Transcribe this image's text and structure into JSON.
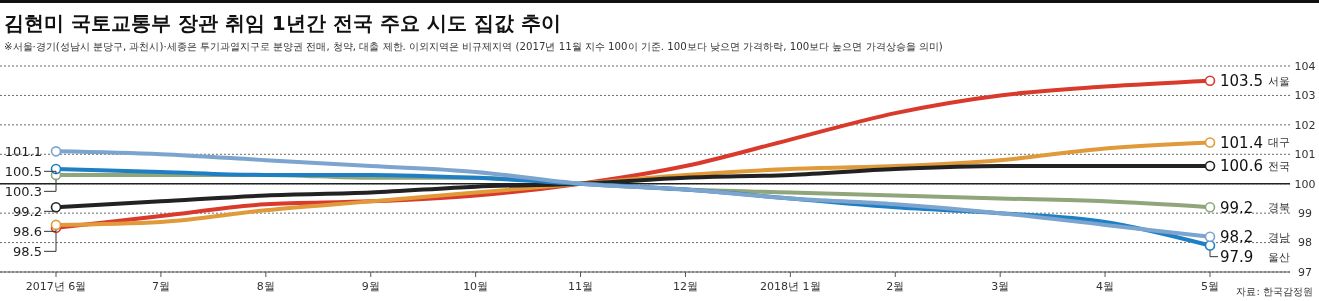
{
  "chart_data": {
    "type": "line",
    "title": "김현미 국토교통부 장관 취임 1년간 전국 주요 시도 집값 추이",
    "subtitle": "※서울·경기(성남시 분당구, 과천시)·세종은 투기과열지구로 분양권 전매, 청약, 대출 제한. 이외지역은 비규제지역 (2017년 11월 지수 100이 기준. 100보다 낮으면 가격하락, 100보다 높으면 가격상승을 의미)",
    "annotations": [
      "자료: 한국감정원"
    ],
    "categories": [
      "2017년 6월",
      "7월",
      "8월",
      "9월",
      "10월",
      "11월",
      "12월",
      "2018년 1월",
      "2월",
      "3월",
      "4월",
      "5월"
    ],
    "ylim": [
      97,
      104
    ],
    "yticks": [
      97,
      98,
      99,
      100,
      101,
      102,
      103,
      104
    ],
    "grid": "y",
    "ref_lines": [
      {
        "axis": "y",
        "value": 100,
        "color": "#222222"
      }
    ],
    "series": [
      {
        "name": "서울",
        "color": "#d93a2b",
        "values": [
          98.5,
          98.9,
          99.3,
          99.4,
          99.6,
          100,
          100.6,
          101.5,
          102.4,
          103.0,
          103.3,
          103.5
        ],
        "value_labels": [
          "98.5",
          null,
          null,
          null,
          null,
          null,
          null,
          null,
          null,
          null,
          null,
          "103.5"
        ]
      },
      {
        "name": "대구",
        "color": "#e09a3a",
        "values": [
          98.6,
          98.7,
          99.1,
          99.4,
          99.7,
          100,
          100.3,
          100.5,
          100.6,
          100.8,
          101.2,
          101.4
        ],
        "value_labels": [
          "98.6",
          null,
          null,
          null,
          null,
          null,
          null,
          null,
          null,
          null,
          null,
          "101.4"
        ]
      },
      {
        "name": "전국",
        "color": "#222222",
        "values": [
          99.2,
          99.4,
          99.6,
          99.7,
          99.9,
          100,
          100.2,
          100.3,
          100.5,
          100.6,
          100.6,
          100.6
        ],
        "value_labels": [
          "99.2",
          null,
          null,
          null,
          null,
          null,
          null,
          null,
          null,
          null,
          null,
          "100.6"
        ]
      },
      {
        "name": "경북",
        "color": "#8fa57a",
        "values": [
          100.3,
          100.3,
          100.3,
          100.2,
          100.2,
          100,
          99.8,
          99.7,
          99.6,
          99.5,
          99.4,
          99.2
        ],
        "value_labels": [
          "100.3",
          null,
          null,
          null,
          null,
          null,
          null,
          null,
          null,
          null,
          null,
          "99.2"
        ]
      },
      {
        "name": "울산",
        "color": "#1f7fc4",
        "values": [
          100.5,
          100.4,
          100.3,
          100.3,
          100.2,
          100,
          99.8,
          99.5,
          99.2,
          99.0,
          98.7,
          97.9
        ],
        "value_labels": [
          "100.5",
          null,
          null,
          null,
          null,
          null,
          null,
          null,
          null,
          null,
          null,
          "97.9"
        ]
      },
      {
        "name": "경남",
        "color": "#7ba4cf",
        "values": [
          101.1,
          101.0,
          100.8,
          100.6,
          100.4,
          100,
          99.8,
          99.5,
          99.3,
          99.0,
          98.6,
          98.2
        ],
        "value_labels": [
          "101.1",
          null,
          null,
          null,
          null,
          null,
          null,
          null,
          null,
          null,
          null,
          "98.2"
        ]
      }
    ]
  }
}
